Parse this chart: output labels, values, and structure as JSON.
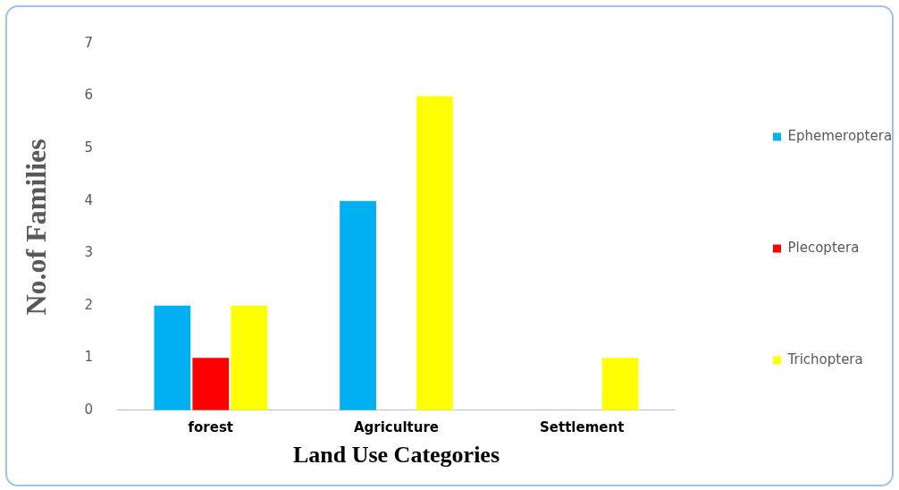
{
  "chart_data": {
    "type": "bar",
    "xlabel": "Land Use Categories",
    "ylabel": "No.of Families",
    "categories": [
      "forest",
      "Agriculture",
      "Settlement"
    ],
    "series": [
      {
        "name": "Ephemeroptera",
        "color": "#00b0f0",
        "values": [
          2,
          4,
          0
        ]
      },
      {
        "name": "Plecoptera",
        "color": "#ff0000",
        "values": [
          1,
          0,
          0
        ]
      },
      {
        "name": "Trichoptera",
        "color": "#ffff00",
        "values": [
          2,
          6,
          1
        ]
      }
    ],
    "ylim": [
      0,
      7
    ],
    "yticks": [
      0,
      1,
      2,
      3,
      4,
      5,
      6,
      7
    ],
    "grid": false,
    "legend": "right"
  }
}
